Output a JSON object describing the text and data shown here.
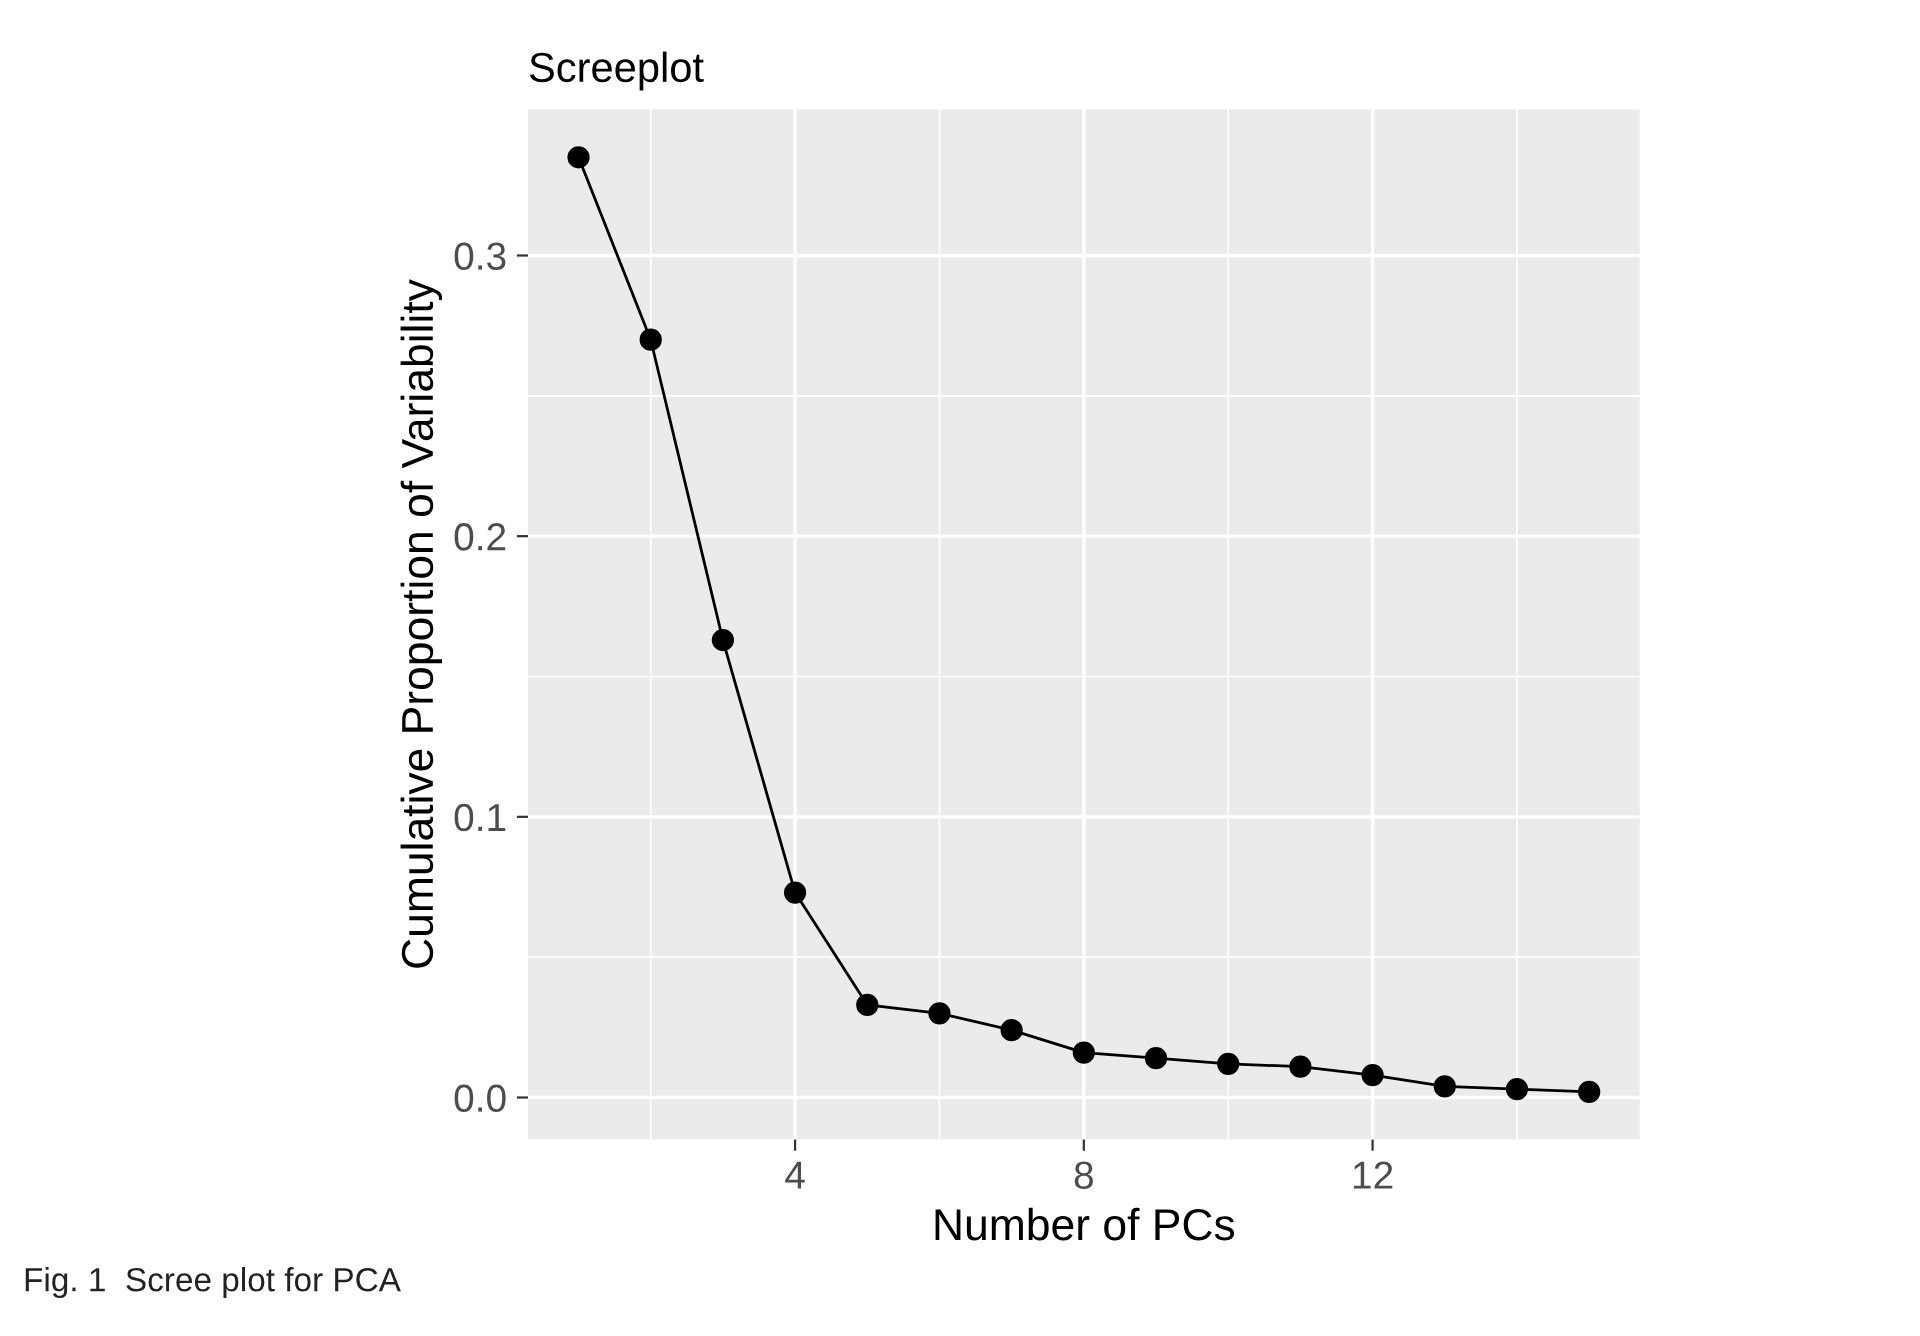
{
  "chart_data": {
    "type": "line",
    "title": "Screeplot",
    "xlabel": "Number of PCs",
    "ylabel": "Cumulative Proportion of Variability",
    "x": [
      1,
      2,
      3,
      4,
      5,
      6,
      7,
      8,
      9,
      10,
      11,
      12,
      13,
      14,
      15
    ],
    "values": [
      0.335,
      0.27,
      0.163,
      0.073,
      0.033,
      0.03,
      0.024,
      0.016,
      0.014,
      0.012,
      0.011,
      0.008,
      0.004,
      0.003,
      0.002
    ],
    "color": "#000000",
    "marker": "circle",
    "line_style": "solid",
    "xlim": [
      0.3,
      15.7
    ],
    "xticks": [
      4,
      8,
      12
    ],
    "ylim": [
      -0.015,
      0.352
    ],
    "yticks": [
      {
        "value": 0,
        "label": "0.0"
      },
      0.1,
      0.2,
      0.3
    ],
    "grid": true,
    "annotations": [
      "Fig. 1  Scree plot for PCA"
    ]
  }
}
